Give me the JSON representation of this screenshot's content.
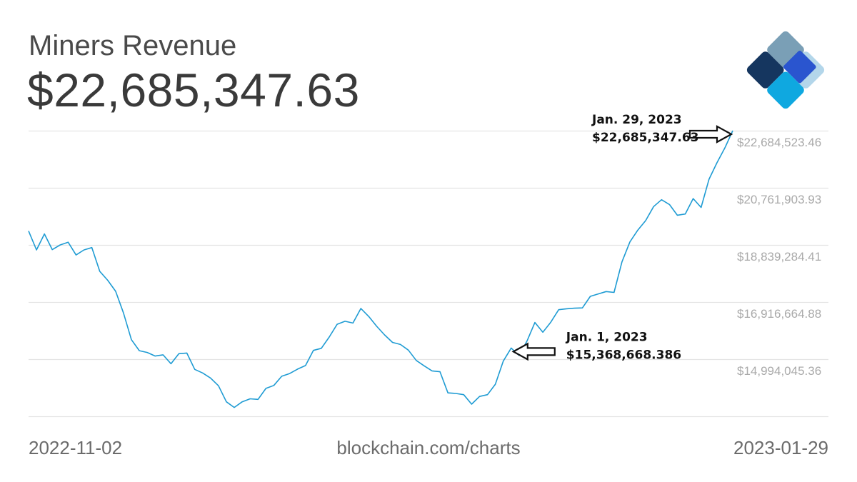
{
  "header": {
    "title": "Miners Revenue",
    "value": "$22,685,347.63"
  },
  "footer": {
    "start_date": "2022-11-02",
    "source": "blockchain.com/charts",
    "end_date": "2023-01-29"
  },
  "logo": {
    "icon": "blockchain-diamond-icon",
    "colors": [
      "#7a9fb6",
      "#15365f",
      "#2a55cf",
      "#b3d6ea",
      "#0fa8e0"
    ]
  },
  "colors": {
    "line": "#1e9bd3",
    "grid": "#e4e4e4",
    "tick_text": "#a9a9a9",
    "annotation_text": "#111111"
  },
  "chart_data": {
    "type": "line",
    "title": "Miners Revenue",
    "xlabel": "",
    "ylabel": "",
    "x_range": [
      "2022-11-02",
      "2023-01-29"
    ],
    "ylim": [
      13071426,
      22684523.46
    ],
    "yticks": [
      22684523.46,
      20761903.93,
      18839284.41,
      16916664.88,
      14994045.36
    ],
    "ytick_labels": [
      "$22,684,523.46",
      "$20,761,903.93",
      "$18,839,284.41",
      "$16,916,664.88",
      "$14,994,045.36"
    ],
    "series": [
      {
        "name": "Miners Revenue",
        "values": [
          19310000,
          18670000,
          19210000,
          18680000,
          18840000,
          18930000,
          18500000,
          18670000,
          18750000,
          17950000,
          17650000,
          17280000,
          16550000,
          15650000,
          15280000,
          15220000,
          15100000,
          15140000,
          14840000,
          15180000,
          15200000,
          14650000,
          14530000,
          14360000,
          14100000,
          13560000,
          13370000,
          13560000,
          13660000,
          13640000,
          14010000,
          14110000,
          14420000,
          14510000,
          14660000,
          14780000,
          15290000,
          15360000,
          15740000,
          16170000,
          16270000,
          16210000,
          16700000,
          16430000,
          16100000,
          15810000,
          15560000,
          15490000,
          15300000,
          14950000,
          14770000,
          14600000,
          14570000,
          13860000,
          13840000,
          13800000,
          13480000,
          13740000,
          13800000,
          14150000,
          14930000,
          15370000,
          15120000,
          15610000,
          16230000,
          15900000,
          16240000,
          16660000,
          16690000,
          16710000,
          16720000,
          17110000,
          17190000,
          17270000,
          17240000,
          18270000,
          18940000,
          19340000,
          19660000,
          20130000,
          20360000,
          20200000,
          19840000,
          19880000,
          20400000,
          20100000,
          21050000,
          21600000,
          22100000,
          22685347.63
        ]
      }
    ],
    "annotations": [
      {
        "date_label": "Jan. 29, 2023",
        "value_label": "$22,685,347.63",
        "point_index": 89,
        "arrow": "right"
      },
      {
        "date_label": "Jan. 1, 2023",
        "value_label": "$15,368,668.386",
        "point_index": 61,
        "arrow": "left"
      }
    ]
  }
}
